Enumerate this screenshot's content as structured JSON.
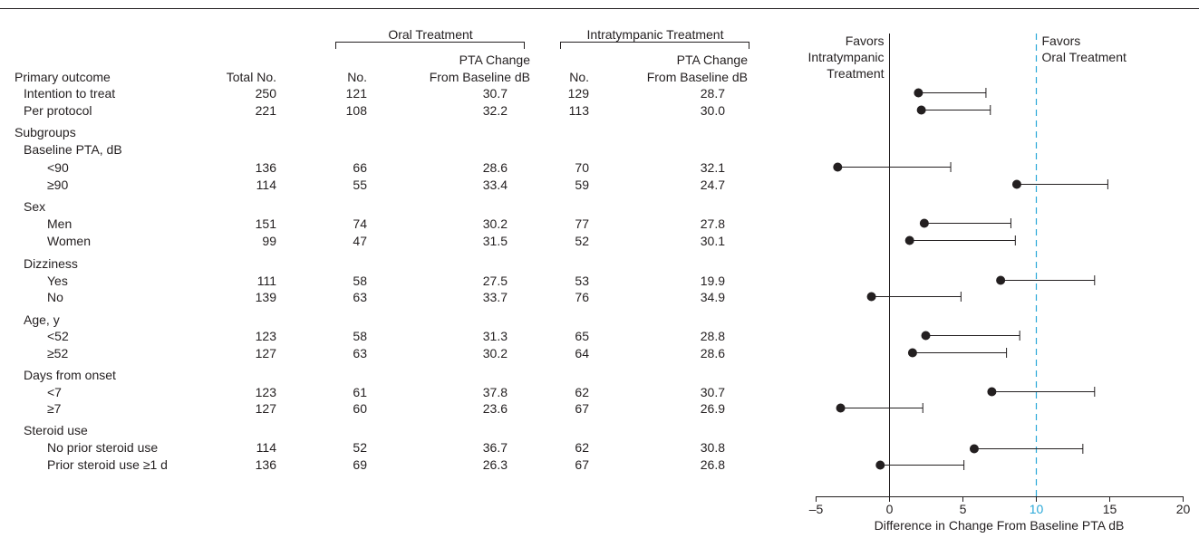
{
  "headers": {
    "oral_group": "Oral Treatment",
    "intratympanic_group": "Intratympanic Treatment",
    "primary_outcome": "Primary outcome",
    "total_no": "Total No.",
    "oral_no": "No.",
    "oral_pta_line1": "PTA Change",
    "oral_pta_line2": "From Baseline dB",
    "it_no": "No.",
    "it_pta_line1": "PTA Change",
    "it_pta_line2": "From Baseline dB"
  },
  "rows": [
    {
      "label": "Intention to treat",
      "level": 1,
      "total": "250",
      "oral_n": "121",
      "oral_pta": "30.7",
      "it_n": "129",
      "it_pta": "28.7"
    },
    {
      "label": "Per protocol",
      "level": 1,
      "total": "221",
      "oral_n": "108",
      "oral_pta": "32.2",
      "it_n": "113",
      "it_pta": "30.0"
    },
    {
      "label": "Subgroups",
      "level": 0
    },
    {
      "label": "Baseline PTA, dB",
      "level": 1
    },
    {
      "label": "<90",
      "level": 2,
      "total": "136",
      "oral_n": "66",
      "oral_pta": "28.6",
      "it_n": "70",
      "it_pta": "32.1"
    },
    {
      "label": "≥90",
      "level": 2,
      "total": "114",
      "oral_n": "55",
      "oral_pta": "33.4",
      "it_n": "59",
      "it_pta": "24.7"
    },
    {
      "label": "Sex",
      "level": 1
    },
    {
      "label": "Men",
      "level": 2,
      "total": "151",
      "oral_n": "74",
      "oral_pta": "30.2",
      "it_n": "77",
      "it_pta": "27.8"
    },
    {
      "label": "Women",
      "level": 2,
      "total": "99",
      "oral_n": "47",
      "oral_pta": "31.5",
      "it_n": "52",
      "it_pta": "30.1"
    },
    {
      "label": "Dizziness",
      "level": 1
    },
    {
      "label": "Yes",
      "level": 2,
      "total": "111",
      "oral_n": "58",
      "oral_pta": "27.5",
      "it_n": "53",
      "it_pta": "19.9"
    },
    {
      "label": "No",
      "level": 2,
      "total": "139",
      "oral_n": "63",
      "oral_pta": "33.7",
      "it_n": "76",
      "it_pta": "34.9"
    },
    {
      "label": "Age, y",
      "level": 1
    },
    {
      "label": "<52",
      "level": 2,
      "total": "123",
      "oral_n": "58",
      "oral_pta": "31.3",
      "it_n": "65",
      "it_pta": "28.8"
    },
    {
      "label": "≥52",
      "level": 2,
      "total": "127",
      "oral_n": "63",
      "oral_pta": "30.2",
      "it_n": "64",
      "it_pta": "28.6"
    },
    {
      "label": "Days from onset",
      "level": 1
    },
    {
      "label": "<7",
      "level": 2,
      "total": "123",
      "oral_n": "61",
      "oral_pta": "37.8",
      "it_n": "62",
      "it_pta": "30.7"
    },
    {
      "label": "≥7",
      "level": 2,
      "total": "127",
      "oral_n": "60",
      "oral_pta": "23.6",
      "it_n": "67",
      "it_pta": "26.9"
    },
    {
      "label": "Steroid use",
      "level": 1
    },
    {
      "label": "No prior steroid use",
      "level": 2,
      "total": "114",
      "oral_n": "52",
      "oral_pta": "36.7",
      "it_n": "62",
      "it_pta": "30.8"
    },
    {
      "label": "Prior steroid use ≥1 d",
      "level": 2,
      "total": "136",
      "oral_n": "69",
      "oral_pta": "26.3",
      "it_n": "67",
      "it_pta": "26.8"
    }
  ],
  "chart_data": {
    "type": "scatter",
    "title": "",
    "xlabel": "Difference in Change From Baseline PTA dB",
    "ylabel": "",
    "xlim": [
      -5,
      20
    ],
    "xticks": [
      -5,
      0,
      5,
      10,
      15,
      20
    ],
    "highlight_tick": 10,
    "reference_line": 0,
    "margin_line": 10,
    "left_annotation": [
      "Favors",
      "Intratympanic",
      "Treatment"
    ],
    "right_annotation": [
      "Favors",
      "Oral Treatment"
    ],
    "grid": false,
    "points": [
      {
        "label": "Intention to treat",
        "x": 2.0,
        "ci_low": 2.0,
        "ci_high": 6.6
      },
      {
        "label": "Per protocol",
        "x": 2.2,
        "ci_low": 2.2,
        "ci_high": 6.9
      },
      {
        "label": "<90",
        "x": -3.5,
        "ci_low": -3.5,
        "ci_high": 4.2
      },
      {
        "label": "≥90",
        "x": 8.7,
        "ci_low": 8.7,
        "ci_high": 14.9
      },
      {
        "label": "Men",
        "x": 2.4,
        "ci_low": 2.4,
        "ci_high": 8.3
      },
      {
        "label": "Women",
        "x": 1.4,
        "ci_low": 1.4,
        "ci_high": 8.6
      },
      {
        "label": "Yes",
        "x": 7.6,
        "ci_low": 7.6,
        "ci_high": 14.0
      },
      {
        "label": "No",
        "x": -1.2,
        "ci_low": -1.2,
        "ci_high": 4.9
      },
      {
        "label": "<52",
        "x": 2.5,
        "ci_low": 2.5,
        "ci_high": 8.9
      },
      {
        "label": "≥52",
        "x": 1.6,
        "ci_low": 1.6,
        "ci_high": 8.0
      },
      {
        "label": "<7",
        "x": 7.0,
        "ci_low": 7.0,
        "ci_high": 14.0
      },
      {
        "label": "≥7",
        "x": -3.3,
        "ci_low": -3.3,
        "ci_high": 2.3
      },
      {
        "label": "No prior steroid use",
        "x": 5.8,
        "ci_low": 5.8,
        "ci_high": 13.2
      },
      {
        "label": "Prior steroid use ≥1 d",
        "x": -0.6,
        "ci_low": -0.6,
        "ci_high": 5.1
      }
    ]
  },
  "colors": {
    "ink": "#231f20",
    "accent": "#29a8d8"
  }
}
